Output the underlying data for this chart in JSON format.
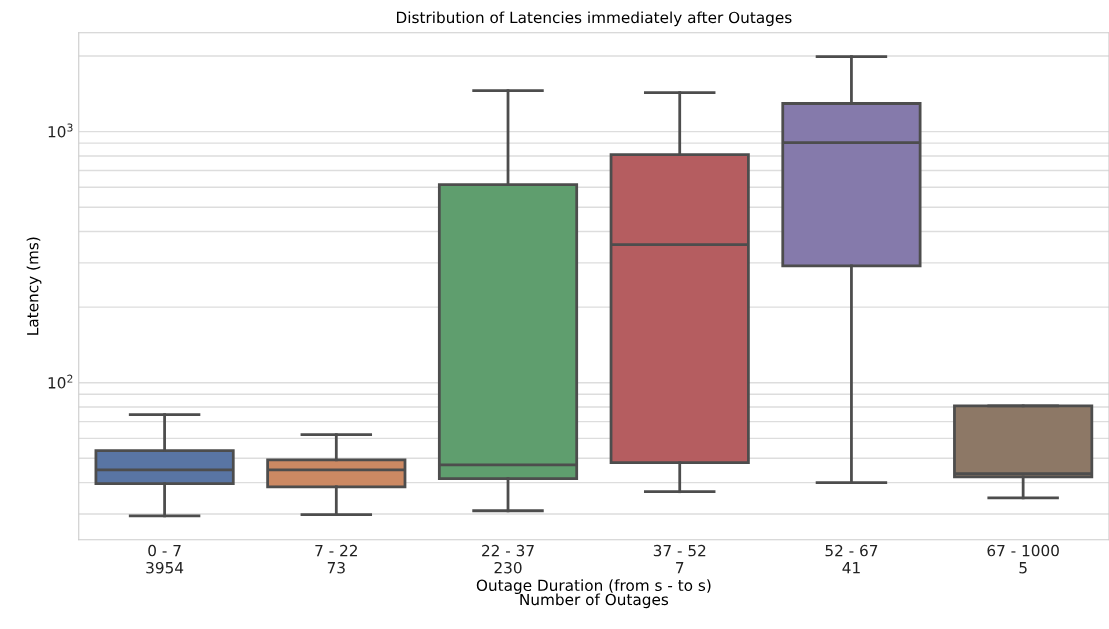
{
  "chart_data": {
    "type": "box",
    "title": "Distribution of Latencies immediately after Outages",
    "xlabel": "Outage Duration (from s - to s)\nNumber of Outages",
    "ylabel": "Latency (ms)",
    "categories": [
      "0 - 7\n3954",
      "7 - 22\n73",
      "22 - 37\n230",
      "37 - 52\n7",
      "52 - 67\n41",
      "67 - 1000\n5"
    ],
    "colors": [
      "#5975a4",
      "#cc8963",
      "#5f9e6e",
      "#b55d60",
      "#857aab",
      "#8d7866"
    ],
    "boxes": [
      {
        "low": 29.5,
        "q1": 39.6,
        "median": 45,
        "q3": 53.6,
        "high": 74.6
      },
      {
        "low": 29.8,
        "q1": 38.5,
        "median": 45,
        "q3": 49.3,
        "high": 62.1
      },
      {
        "low": 30.9,
        "q1": 41.5,
        "median": 47.1,
        "q3": 615,
        "high": 1455
      },
      {
        "low": 36.8,
        "q1": 48,
        "median": 355,
        "q3": 809,
        "high": 1430
      },
      {
        "low": 40,
        "q1": 292,
        "median": 904,
        "q3": 1294,
        "high": 1990
      },
      {
        "low": 34.8,
        "q1": 42.2,
        "median": 43.4,
        "q3": 80.9,
        "high": 80.9
      }
    ],
    "log": "y",
    "ylim": [
      23.7,
      2477
    ],
    "yticks": [
      {
        "value": 30,
        "label": null
      },
      {
        "value": 40,
        "label": null
      },
      {
        "value": 50,
        "label": null
      },
      {
        "value": 60,
        "label": null
      },
      {
        "value": 70,
        "label": null
      },
      {
        "value": 80,
        "label": null
      },
      {
        "value": 90,
        "label": null
      },
      {
        "value": 100,
        "label": "10$^{2}$"
      },
      {
        "value": 200,
        "label": null
      },
      {
        "value": 300,
        "label": null
      },
      {
        "value": 400,
        "label": null
      },
      {
        "value": 500,
        "label": null
      },
      {
        "value": 600,
        "label": null
      },
      {
        "value": 700,
        "label": null
      },
      {
        "value": 800,
        "label": null
      },
      {
        "value": 900,
        "label": null
      },
      {
        "value": 1000,
        "label": "10$^{3}$"
      },
      {
        "value": 2000,
        "label": null
      }
    ],
    "grid": "y"
  }
}
